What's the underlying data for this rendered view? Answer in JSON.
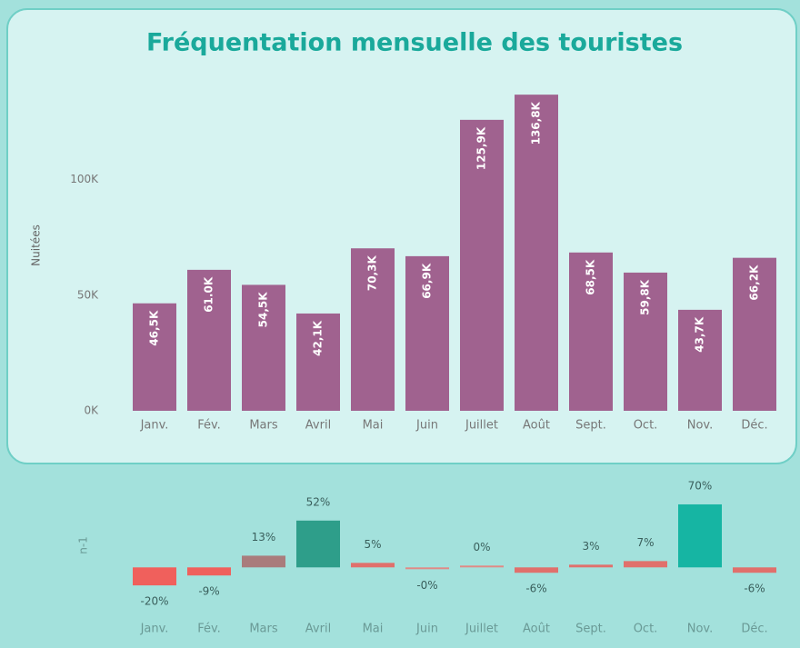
{
  "chart_data": [
    {
      "type": "bar",
      "title": "Fréquentation mensuelle des touristes",
      "y_label": "Nuitées",
      "categories": [
        "Janv.",
        "Fév.",
        "Mars",
        "Avril",
        "Mai",
        "Juin",
        "Juillet",
        "Août",
        "Sept.",
        "Oct.",
        "Nov.",
        "Déc."
      ],
      "values": [
        46500,
        61000,
        54500,
        42100,
        70300,
        66900,
        125900,
        136800,
        68500,
        59800,
        43700,
        66200
      ],
      "value_labels": [
        "46,5K",
        "61.0K",
        "54,5K",
        "42,1K",
        "70,3K",
        "66,9K",
        "125,9K",
        "136,8K",
        "68,5K",
        "59,8K",
        "43,7K",
        "66,2K"
      ],
      "color": "#a0628f",
      "ylim": [
        0,
        140000
      ],
      "yticks": [
        {
          "value": 0,
          "label": "0K"
        },
        {
          "value": 50000,
          "label": "50K"
        },
        {
          "value": 100000,
          "label": "100K"
        }
      ]
    },
    {
      "type": "bar",
      "y_label": "n-1",
      "categories": [
        "Janv.",
        "Fév.",
        "Mars",
        "Avril",
        "Mai",
        "Juin",
        "Juillet",
        "Août",
        "Sept.",
        "Oct.",
        "Nov.",
        "Déc."
      ],
      "values": [
        -20,
        -9,
        13,
        52,
        5,
        -0.2,
        0.2,
        -6,
        3,
        7,
        70,
        -6
      ],
      "value_labels": [
        "-20%",
        "-9%",
        "13%",
        "52%",
        "5%",
        "-0%",
        "0%",
        "-6%",
        "3%",
        "7%",
        "70%",
        "-6%"
      ],
      "colors": [
        "#f0605c",
        "#f0605c",
        "#a97c7c",
        "#2e9e8a",
        "#e0706c",
        "#e08a86",
        "#e08a86",
        "#e0706c",
        "#e0706c",
        "#e0706c",
        "#16b5a3",
        "#e0706c"
      ],
      "ylim": [
        -30,
        72
      ]
    }
  ]
}
